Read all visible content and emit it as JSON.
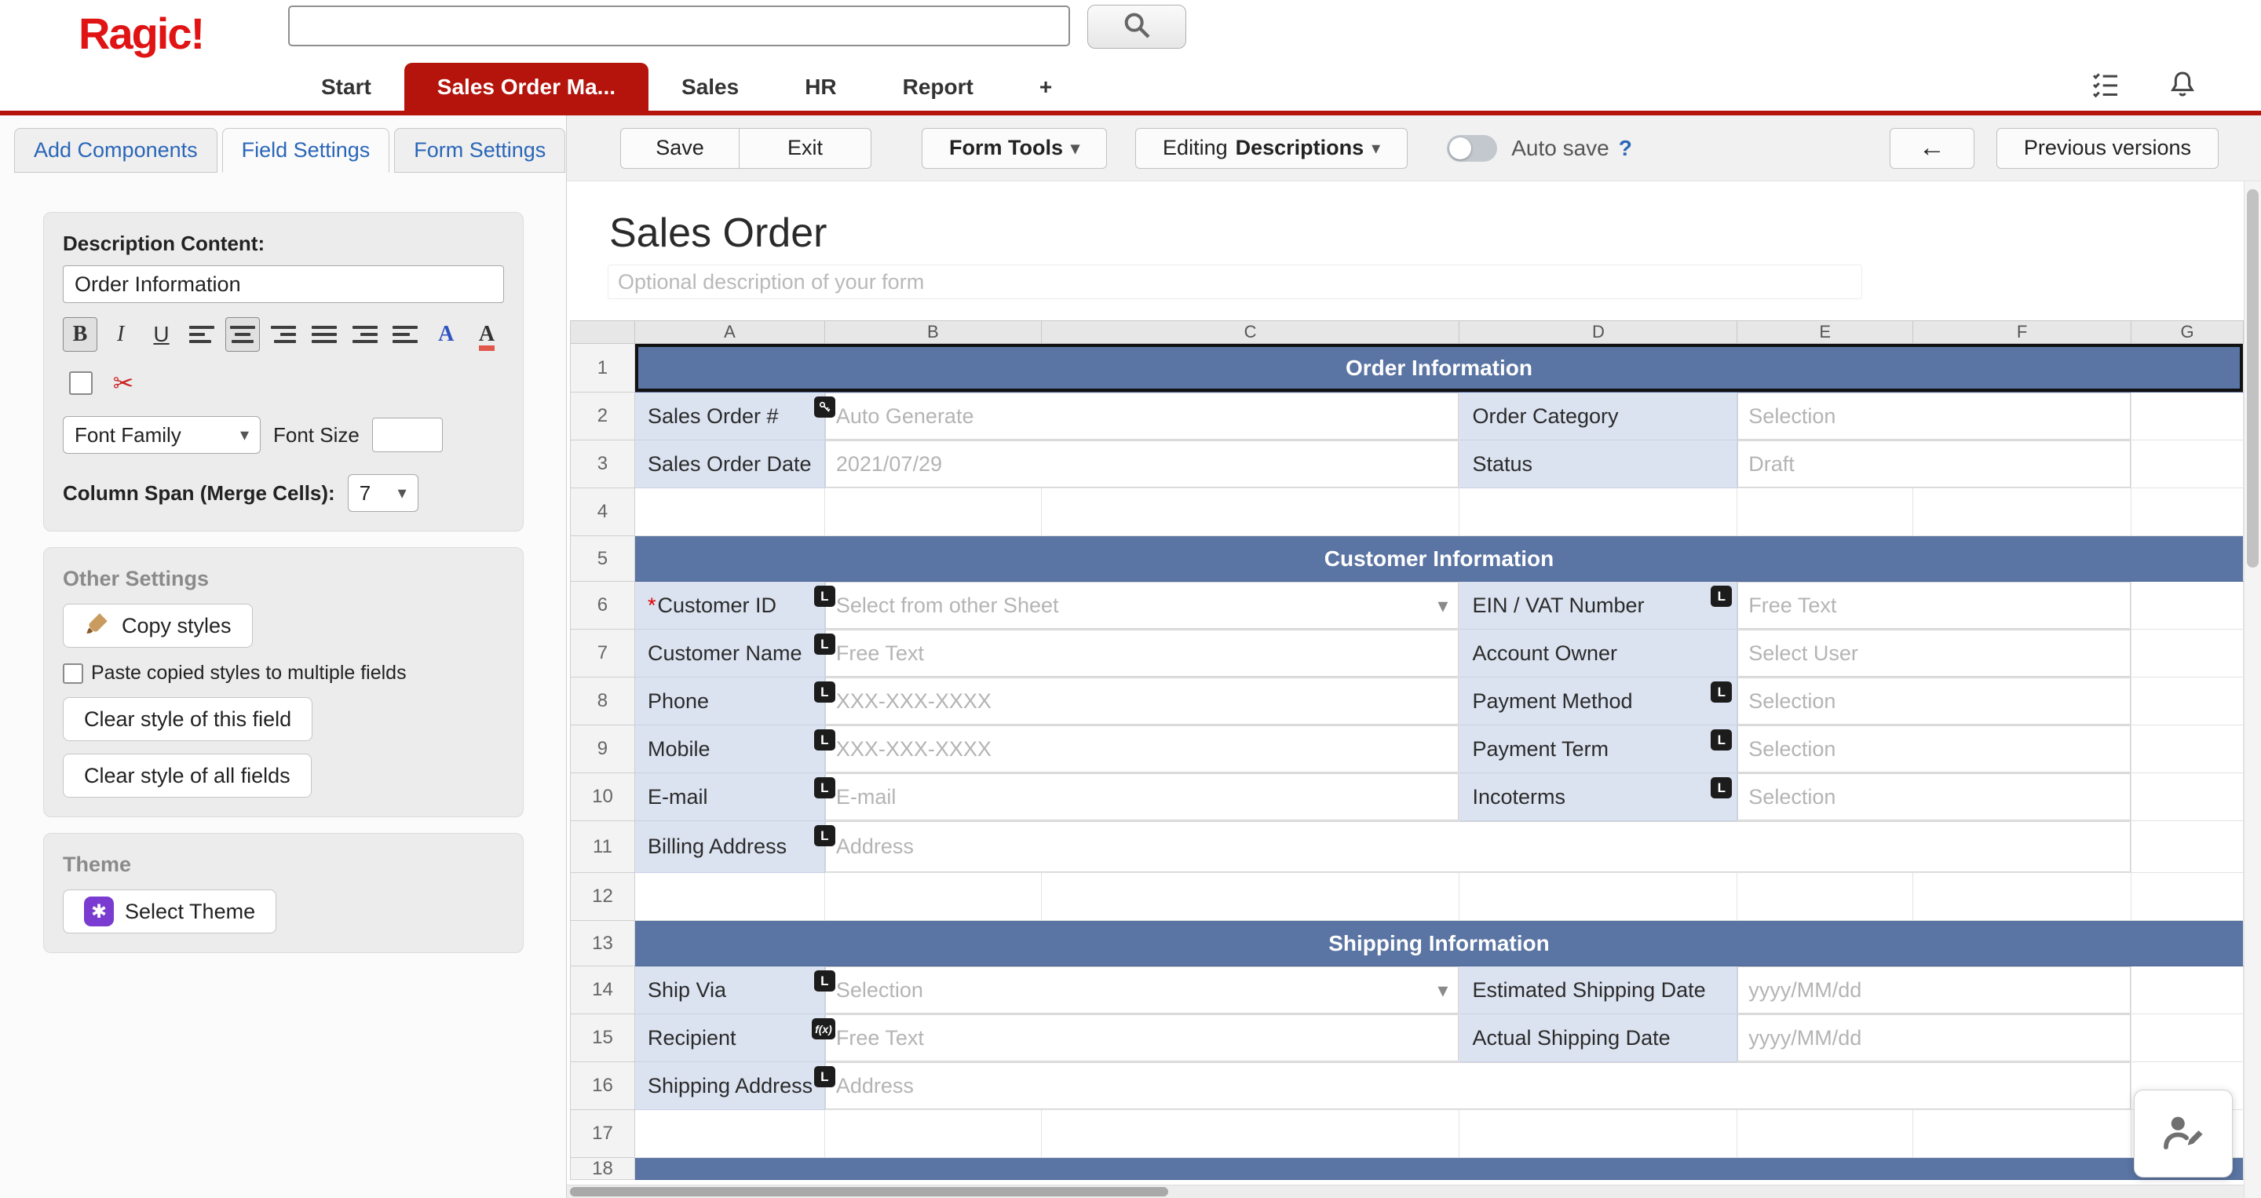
{
  "colors": {
    "brand_red": "#e01414",
    "tab_red": "#b5140c",
    "section_blue": "#5a74a3",
    "label_cell_bg": "#dbe2f0",
    "link_blue": "#2a66b8",
    "theme_purple": "#7a3bd0"
  },
  "header": {
    "logo": "Ragic!",
    "search_placeholder": "",
    "tabs": [
      {
        "label": "Start",
        "active": false
      },
      {
        "label": "Sales Order Ma...",
        "active": true
      },
      {
        "label": "Sales",
        "active": false
      },
      {
        "label": "HR",
        "active": false
      },
      {
        "label": "Report",
        "active": false
      },
      {
        "label": "+",
        "active": false
      }
    ]
  },
  "sidebar": {
    "tabs": [
      {
        "label": "Add Components",
        "active": false
      },
      {
        "label": "Field Settings",
        "active": true
      },
      {
        "label": "Form Settings",
        "active": false
      }
    ],
    "description_panel": {
      "label": "Description Content:",
      "value": "Order Information",
      "font_family": "Font Family",
      "font_size_label": "Font Size",
      "font_size_value": "",
      "column_span_label": "Column Span (Merge Cells):",
      "column_span_value": "7"
    },
    "other_settings": {
      "title": "Other Settings",
      "copy_styles": "Copy styles",
      "paste_label": "Paste copied styles to multiple fields",
      "clear_field": "Clear style of this field",
      "clear_all": "Clear style of all fields"
    },
    "theme": {
      "title": "Theme",
      "select_button": "Select Theme"
    }
  },
  "toolbar": {
    "save": "Save",
    "exit": "Exit",
    "form_tools": "Form Tools",
    "editing_prefix": "Editing",
    "editing_mode": "Descriptions",
    "auto_save": "Auto save",
    "help": "?",
    "previous_versions": "Previous versions"
  },
  "sheet": {
    "title": "Sales Order",
    "description_placeholder": "Optional description of your form",
    "columns": [
      "A",
      "B",
      "C",
      "D",
      "E",
      "F",
      "G"
    ],
    "rows": [
      {
        "n": "1",
        "type": "section",
        "label": "Order Information",
        "selected": true
      },
      {
        "n": "2",
        "type": "fields",
        "left": {
          "label": "Sales Order #",
          "badge": "key",
          "value": "Auto Generate"
        },
        "right": {
          "label": "Order Category",
          "value": "Selection"
        }
      },
      {
        "n": "3",
        "type": "fields",
        "left": {
          "label": "Sales Order Date",
          "value": "2021/07/29"
        },
        "right": {
          "label": "Status",
          "value": "Draft"
        }
      },
      {
        "n": "4",
        "type": "empty"
      },
      {
        "n": "5",
        "type": "section",
        "label": "Customer Information"
      },
      {
        "n": "6",
        "type": "fields",
        "left": {
          "label": "Customer ID",
          "required": true,
          "badge": "L",
          "value": "Select from other Sheet",
          "dropdown": true
        },
        "right": {
          "label": "EIN / VAT Number",
          "badge": "L",
          "value": "Free Text"
        }
      },
      {
        "n": "7",
        "type": "fields",
        "left": {
          "label": "Customer Name",
          "badge": "L",
          "value": "Free Text"
        },
        "right": {
          "label": "Account Owner",
          "value": "Select User"
        }
      },
      {
        "n": "8",
        "type": "fields",
        "left": {
          "label": "Phone",
          "badge": "L",
          "value": "XXX-XXX-XXXX"
        },
        "right": {
          "label": "Payment Method",
          "badge": "L",
          "value": "Selection"
        }
      },
      {
        "n": "9",
        "type": "fields",
        "left": {
          "label": "Mobile",
          "badge": "L",
          "value": "XXX-XXX-XXXX"
        },
        "right": {
          "label": "Payment Term",
          "badge": "L",
          "value": "Selection"
        }
      },
      {
        "n": "10",
        "type": "fields",
        "left": {
          "label": "E-mail",
          "badge": "L",
          "value": "E-mail"
        },
        "right": {
          "label": "Incoterms",
          "badge": "L",
          "value": "Selection"
        }
      },
      {
        "n": "11",
        "type": "wide",
        "left": {
          "label": "Billing Address",
          "badge": "L",
          "value": "Address"
        }
      },
      {
        "n": "12",
        "type": "empty"
      },
      {
        "n": "13",
        "type": "section",
        "label": "Shipping Information"
      },
      {
        "n": "14",
        "type": "fields",
        "left": {
          "label": "Ship Via",
          "badge": "L",
          "value": "Selection",
          "dropdown": true
        },
        "right": {
          "label": "Estimated Shipping Date",
          "value": "yyyy/MM/dd"
        }
      },
      {
        "n": "15",
        "type": "fields",
        "left": {
          "label": "Recipient",
          "badge": "fx",
          "value": "Free Text"
        },
        "right": {
          "label": "Actual Shipping Date",
          "value": "yyyy/MM/dd"
        }
      },
      {
        "n": "16",
        "type": "wide",
        "left": {
          "label": "Shipping Address",
          "badge": "L",
          "value": "Address"
        }
      },
      {
        "n": "17",
        "type": "empty"
      },
      {
        "n": "18",
        "type": "section-partial",
        "label": ""
      }
    ]
  }
}
